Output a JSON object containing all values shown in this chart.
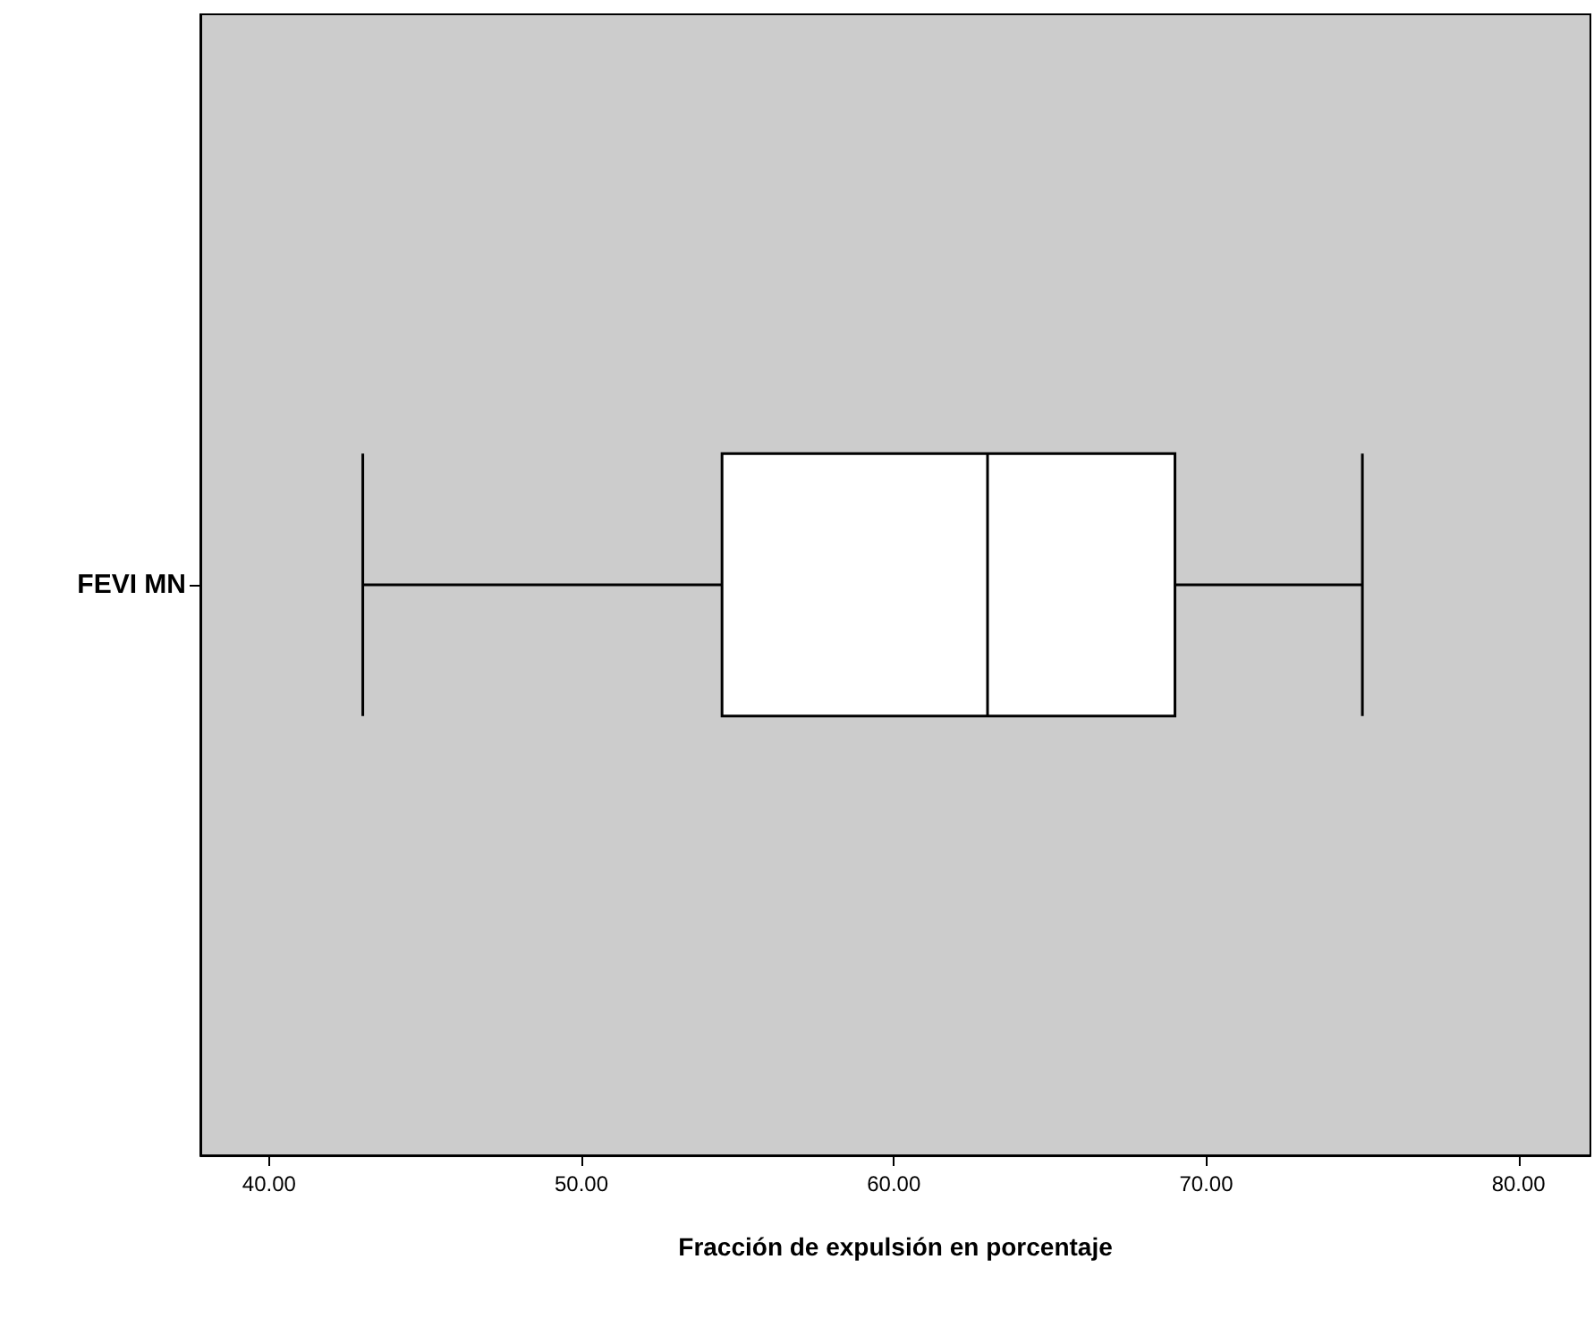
{
  "chart_data": {
    "type": "box",
    "orientation": "horizontal",
    "categories": [
      "FEVI MN"
    ],
    "xlabel": "Fracción de expulsión en porcentaje",
    "boxes": [
      {
        "low": 43,
        "q1": 54.5,
        "median": 63,
        "q3": 69,
        "high": 75
      }
    ],
    "xlim": [
      37.8,
      82.3
    ],
    "xticks": [
      {
        "value": 40,
        "label": "40.00"
      },
      {
        "value": 50,
        "label": "50.00"
      },
      {
        "value": 60,
        "label": "60.00"
      },
      {
        "value": 70,
        "label": "70.00"
      },
      {
        "value": 80,
        "label": "80.00"
      }
    ],
    "grid": false
  }
}
